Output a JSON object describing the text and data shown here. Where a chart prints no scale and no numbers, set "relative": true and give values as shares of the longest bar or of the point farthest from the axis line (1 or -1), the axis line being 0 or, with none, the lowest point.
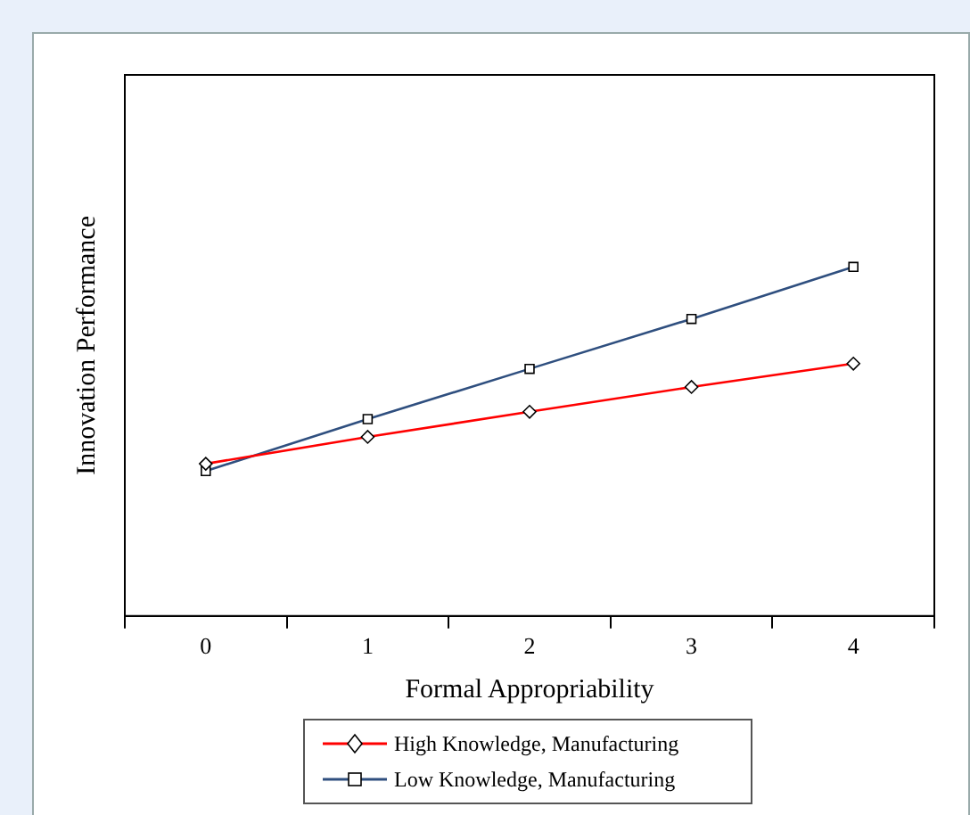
{
  "chart_data": {
    "type": "line",
    "relative": true,
    "xlabel": "Formal Appropriability",
    "ylabel": "Innovation Performance",
    "categories": [
      "0",
      "1",
      "2",
      "3",
      "4"
    ],
    "grid": false,
    "legend": "bottom",
    "line_style": "solid",
    "series": [
      {
        "name": "High Knowledge, Manufacturing",
        "color": "#ff0000",
        "marker": "diamond",
        "values": [
          0.436,
          0.513,
          0.585,
          0.656,
          0.723
        ]
      },
      {
        "name": "Low Knowledge, Manufacturing",
        "color": "#2f4f7f",
        "marker": "square",
        "values": [
          0.415,
          0.564,
          0.708,
          0.851,
          1
        ]
      }
    ]
  }
}
